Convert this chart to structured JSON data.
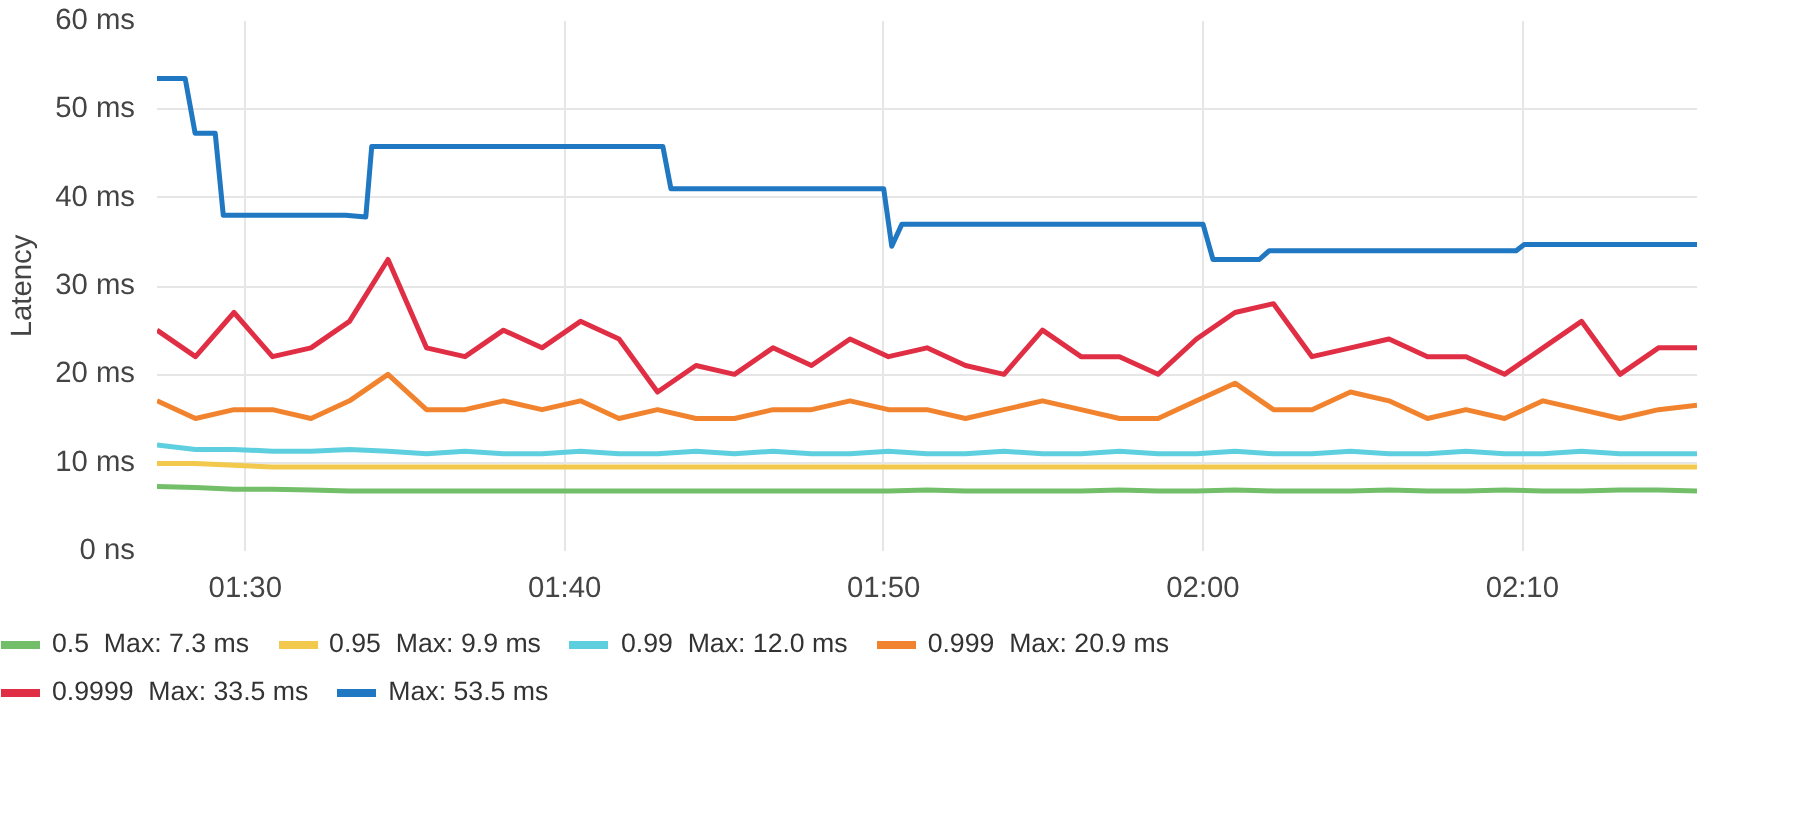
{
  "chart_data": {
    "type": "line",
    "ylabel": "Latency",
    "x": [
      1.4539,
      1.474,
      1.4941,
      1.5142,
      1.5343,
      1.5544,
      1.5745,
      1.5946,
      1.6147,
      1.6348,
      1.6549,
      1.675,
      1.6951,
      1.7152,
      1.7353,
      1.7554,
      1.7755,
      1.7956,
      1.8157,
      1.8358,
      1.8559,
      1.876,
      1.8961,
      1.9162,
      1.9363,
      1.9564,
      1.9765,
      1.9966,
      2.0167,
      2.0368,
      2.0569,
      2.077,
      2.0971,
      2.1172,
      2.1373,
      2.1574,
      2.1775,
      2.1976,
      2.2177,
      2.2378,
      2.2579
    ],
    "series": [
      {
        "name": "0.5  Max: 7.3 ms",
        "color": "#73bf69",
        "values": [
          7.3,
          7.2,
          7.0,
          7.0,
          6.9,
          6.8,
          6.8,
          6.8,
          6.8,
          6.8,
          6.8,
          6.8,
          6.8,
          6.8,
          6.8,
          6.8,
          6.8,
          6.8,
          6.8,
          6.8,
          6.9,
          6.8,
          6.8,
          6.8,
          6.8,
          6.9,
          6.8,
          6.8,
          6.9,
          6.8,
          6.8,
          6.8,
          6.9,
          6.8,
          6.8,
          6.9,
          6.8,
          6.8,
          6.9,
          6.9,
          6.8
        ]
      },
      {
        "name": "0.95  Max: 9.9 ms",
        "color": "#f2c94c",
        "values": [
          9.9,
          9.9,
          9.7,
          9.5,
          9.5,
          9.5,
          9.5,
          9.5,
          9.5,
          9.5,
          9.5,
          9.5,
          9.5,
          9.5,
          9.5,
          9.5,
          9.5,
          9.5,
          9.5,
          9.5,
          9.5,
          9.5,
          9.5,
          9.5,
          9.5,
          9.5,
          9.5,
          9.5,
          9.5,
          9.5,
          9.5,
          9.5,
          9.5,
          9.5,
          9.5,
          9.5,
          9.5,
          9.5,
          9.5,
          9.5,
          9.5
        ]
      },
      {
        "name": "0.99  Max: 12.0 ms",
        "color": "#5ecfde",
        "values": [
          12.0,
          11.5,
          11.5,
          11.3,
          11.3,
          11.5,
          11.3,
          11.0,
          11.3,
          11.0,
          11.0,
          11.3,
          11.0,
          11.0,
          11.3,
          11.0,
          11.3,
          11.0,
          11.0,
          11.3,
          11.0,
          11.0,
          11.3,
          11.0,
          11.0,
          11.3,
          11.0,
          11.0,
          11.3,
          11.0,
          11.0,
          11.3,
          11.0,
          11.0,
          11.3,
          11.0,
          11.0,
          11.3,
          11.0,
          11.0,
          11.0
        ]
      },
      {
        "name": "0.999  Max: 20.9 ms",
        "color": "#f2832e",
        "values": [
          17,
          15,
          16,
          16,
          15,
          17,
          20,
          16,
          16,
          17,
          16,
          17,
          15,
          16,
          15,
          15,
          16,
          16,
          17,
          16,
          16,
          15,
          16,
          17,
          16,
          15,
          15,
          17,
          19,
          16,
          16,
          18,
          17,
          15,
          16,
          15,
          17,
          16,
          15,
          16,
          16.5
        ]
      },
      {
        "name": "0.9999  Max: 33.5 ms",
        "color": "#e02f44",
        "values": [
          25,
          22,
          27,
          22,
          23,
          26,
          33,
          23,
          22,
          25,
          23,
          26,
          24,
          18,
          21,
          20,
          23,
          21,
          24,
          22,
          23,
          21,
          20,
          25,
          22,
          22,
          20,
          24,
          27,
          28,
          22,
          23,
          24,
          22,
          22,
          20,
          23,
          26,
          20,
          23,
          23
        ]
      },
      {
        "name": "Max: 53.5 ms",
        "color": "#1f78c1",
        "x": [
          1.4539,
          1.4686,
          1.4738,
          1.4843,
          1.4885,
          1.5524,
          1.5629,
          1.566,
          1.718,
          1.7222,
          1.8333,
          1.8375,
          1.8428,
          2.0,
          2.0052,
          2.0294,
          2.0346,
          2.1635,
          2.1677,
          2.2579
        ],
        "values": [
          53.5,
          53.5,
          47.3,
          47.3,
          38,
          38,
          37.8,
          45.8,
          45.8,
          41,
          41,
          34.5,
          37,
          37,
          33,
          33,
          34,
          34,
          34.7,
          34.7
        ]
      }
    ],
    "xlim": [
      1.4539,
      2.2579
    ],
    "xticks": [
      {
        "value": 1.5,
        "label": "01:30"
      },
      {
        "value": 1.6667,
        "label": "01:40"
      },
      {
        "value": 1.8333,
        "label": "01:50"
      },
      {
        "value": 2.0,
        "label": "02:00"
      },
      {
        "value": 2.1667,
        "label": "02:10"
      }
    ],
    "ylim": [
      0,
      60
    ],
    "yticks": [
      {
        "value": 0,
        "label": "0 ns"
      },
      {
        "value": 10,
        "label": "10 ms"
      },
      {
        "value": 20,
        "label": "20 ms"
      },
      {
        "value": 30,
        "label": "30 ms"
      },
      {
        "value": 40,
        "label": "40 ms"
      },
      {
        "value": 50,
        "label": "50 ms"
      },
      {
        "value": 60,
        "label": "60 ms"
      }
    ],
    "grid": true,
    "legend": "bottom"
  }
}
